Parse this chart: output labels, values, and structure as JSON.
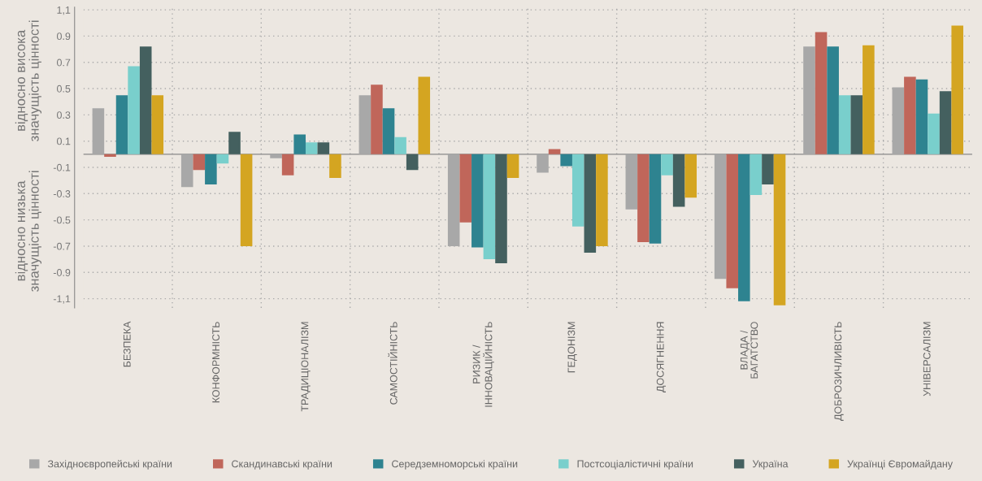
{
  "chart_data": {
    "type": "bar",
    "categories": [
      "БЕЗПЕКА",
      "КОНФОРМНІСТЬ",
      "ТРАДИЦІОНАЛІЗМ",
      "САМОСТІЙНІСТЬ",
      "РИЗИК /\nІННОВАЦІЙНІСТЬ",
      "ГЕДОНІЗМ",
      "ДОСЯГНЕННЯ",
      "ВЛАДА /\nБАГАТСТВО",
      "ДОБРОЗИЧЛИВІСТЬ",
      "УНІВЕРСАЛІЗМ"
    ],
    "series": [
      {
        "name": "Західноєвропейські країни",
        "color": "#a8a8a8",
        "values": [
          0.35,
          -0.25,
          -0.03,
          0.45,
          -0.7,
          -0.14,
          -0.42,
          -0.95,
          0.82,
          0.51
        ]
      },
      {
        "name": "Скандинавські країни",
        "color": "#c0665a",
        "values": [
          -0.02,
          -0.12,
          -0.16,
          0.53,
          -0.52,
          0.04,
          -0.67,
          -1.02,
          0.93,
          0.59
        ]
      },
      {
        "name": "Середземноморські країни",
        "color": "#2e8390",
        "values": [
          0.45,
          -0.23,
          0.15,
          0.35,
          -0.71,
          -0.09,
          -0.68,
          -1.12,
          0.82,
          0.57
        ]
      },
      {
        "name": "Постсоціалістичні країни",
        "color": "#79cfcc",
        "values": [
          0.67,
          -0.07,
          0.09,
          0.13,
          -0.8,
          -0.55,
          -0.16,
          -0.31,
          0.45,
          0.31
        ]
      },
      {
        "name": "Україна",
        "color": "#44605f",
        "values": [
          0.82,
          0.17,
          0.09,
          -0.12,
          -0.83,
          -0.75,
          -0.4,
          -0.23,
          0.45,
          0.48
        ]
      },
      {
        "name": "Українці Євромайдану",
        "color": "#d4a521",
        "values": [
          0.45,
          -0.7,
          -0.18,
          0.59,
          -0.18,
          -0.7,
          -0.33,
          -1.15,
          0.83,
          0.98
        ]
      }
    ],
    "ylim": [
      -1.17,
      1.12
    ],
    "yticks": [
      {
        "value": 1.1,
        "label": "1,1"
      },
      {
        "value": 0.9,
        "label": "0.9"
      },
      {
        "value": 0.7,
        "label": "0.7"
      },
      {
        "value": 0.5,
        "label": "0.5"
      },
      {
        "value": 0.3,
        "label": "0.3"
      },
      {
        "value": 0.1,
        "label": "0.1"
      },
      {
        "value": -0.1,
        "label": "-0.1"
      },
      {
        "value": -0.3,
        "label": "-0.3"
      },
      {
        "value": -0.5,
        "label": "-0.5"
      },
      {
        "value": -0.7,
        "label": "-0.7"
      },
      {
        "value": -0.9,
        "label": "-0.9"
      },
      {
        "value": -1.1,
        "label": "-1,1"
      }
    ],
    "annotations": [
      "відносно висока\nзначущість цінності",
      "відносно низька\nзначущість цінності"
    ],
    "grid": true,
    "legend": "bottom"
  }
}
